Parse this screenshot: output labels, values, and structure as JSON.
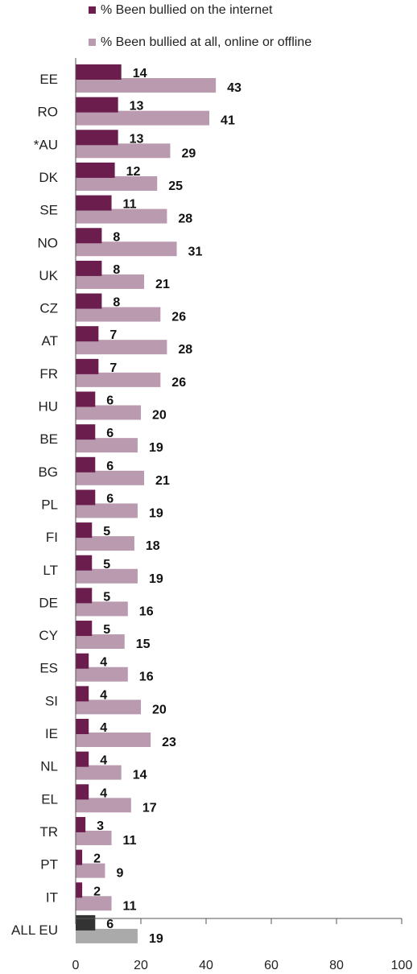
{
  "chart_data": {
    "type": "bar",
    "orientation": "horizontal",
    "categories": [
      "EE",
      "RO",
      "*AU",
      "DK",
      "SE",
      "NO",
      "UK",
      "CZ",
      "AT",
      "FR",
      "HU",
      "BE",
      "BG",
      "PL",
      "FI",
      "LT",
      "DE",
      "CY",
      "ES",
      "SI",
      "IE",
      "NL",
      "EL",
      "TR",
      "PT",
      "IT",
      "ALL EU"
    ],
    "series": [
      {
        "name": "% Been bullied on the internet",
        "color": "#6b1e4e",
        "highlight_color": "#333333",
        "values": [
          14,
          13,
          13,
          12,
          11,
          8,
          8,
          8,
          7,
          7,
          6,
          6,
          6,
          6,
          5,
          5,
          5,
          5,
          4,
          4,
          4,
          4,
          4,
          3,
          2,
          2,
          6
        ]
      },
      {
        "name": "% Been bullied at all, online or offline",
        "color": "#b99aaf",
        "highlight_color": "#aaaaaa",
        "values": [
          43,
          41,
          29,
          25,
          28,
          31,
          21,
          26,
          28,
          26,
          20,
          19,
          21,
          19,
          18,
          19,
          16,
          15,
          16,
          20,
          23,
          14,
          17,
          11,
          9,
          11,
          19
        ]
      }
    ],
    "highlight_category": "ALL EU",
    "xlim": [
      0,
      100
    ],
    "xticks": [
      0,
      20,
      40,
      60,
      80,
      100
    ],
    "legend_position": "top"
  }
}
